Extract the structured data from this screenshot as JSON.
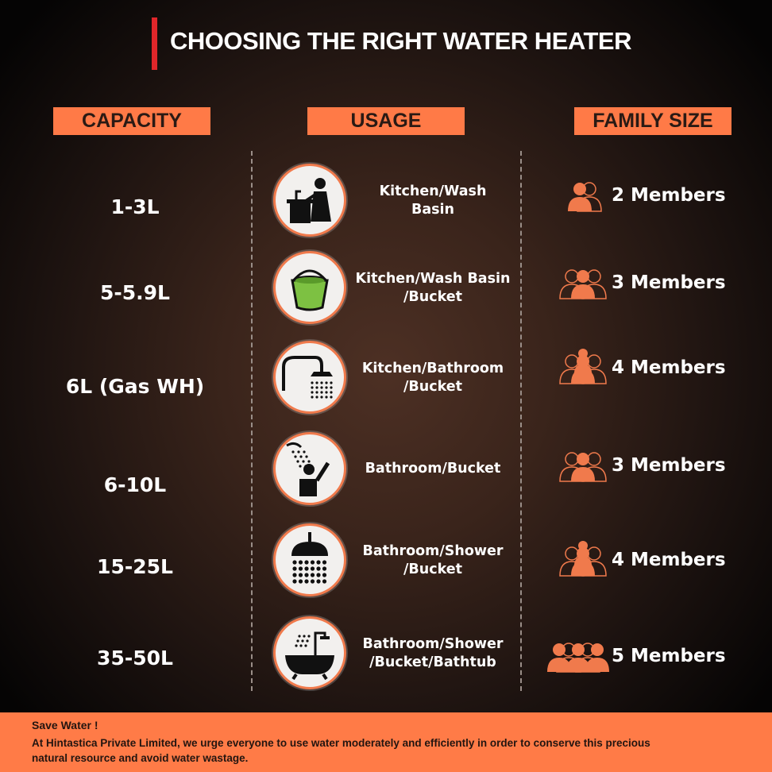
{
  "title": "CHOOSING THE RIGHT WATER HEATER",
  "headers": {
    "capacity": "CAPACITY",
    "usage": "USAGE",
    "family": "FAMILY SIZE"
  },
  "colors": {
    "accent": "#ff7a47",
    "title_bar": "#e0262a",
    "bucket": "#7dc142"
  },
  "rows": [
    {
      "capacity": "1-3L",
      "usage_line1": "Kitchen/Wash",
      "usage_line2": "Basin",
      "usage_icon": "person-at-sink-icon",
      "family": "2 Members",
      "members": 2
    },
    {
      "capacity": "5-5.9L",
      "usage_line1": "Kitchen/Wash Basin",
      "usage_line2": "/Bucket",
      "usage_icon": "bucket-icon",
      "family": "3 Members",
      "members": 3
    },
    {
      "capacity": "6L (Gas WH)",
      "usage_line1": "Kitchen/Bathroom",
      "usage_line2": "/Bucket",
      "usage_icon": "shower-icon",
      "family": "4 Members",
      "members": 4
    },
    {
      "capacity": "6-10L",
      "usage_line1": "Bathroom/Bucket",
      "usage_line2": "",
      "usage_icon": "person-showering-icon",
      "family": "3 Members",
      "members": 3
    },
    {
      "capacity": "15-25L",
      "usage_line1": "Bathroom/Shower",
      "usage_line2": "/Bucket",
      "usage_icon": "shower-head-icon",
      "family": "4 Members",
      "members": 4
    },
    {
      "capacity": "35-50L",
      "usage_line1": "Bathroom/Shower",
      "usage_line2": "/Bucket/Bathtub",
      "usage_icon": "bathtub-icon",
      "family": "5 Members",
      "members": 5
    }
  ],
  "footer": {
    "heading": "Save Water !",
    "body": "At Hintastica Private Limited, we urge everyone to use water moderately and efficiently in order to conserve this precious natural resource and avoid water wastage."
  }
}
